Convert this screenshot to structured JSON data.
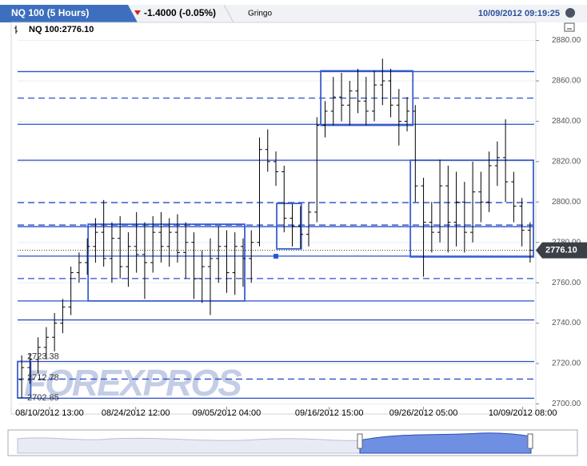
{
  "header": {
    "tab": "NQ 100 (5 Hours)",
    "change": "-1.4000 (-0.05%)",
    "user": "Gringo",
    "timestamp": "10/09/2012 09:19:25"
  },
  "chart_data": {
    "type": "ohlc",
    "title": "NQ 100:2776.10",
    "watermark": "FOREXPROS",
    "color": "#000000",
    "open": [
      2712,
      2718,
      2722,
      2728,
      2733,
      2740,
      2748,
      2765,
      2770,
      2778,
      2785,
      2772,
      2782,
      2768,
      2778,
      2774,
      2770,
      2785,
      2778,
      2785,
      2775,
      2780,
      2762,
      2768,
      2772,
      2778,
      2765,
      2778,
      2772,
      2780,
      2826,
      2820,
      2815,
      2792,
      2788,
      2784,
      2795,
      2838,
      2845,
      2852,
      2848,
      2855,
      2850,
      2845,
      2858,
      2860,
      2848,
      2840,
      2845,
      2808,
      2790,
      2785,
      2808,
      2790,
      2800,
      2785,
      2805,
      2800,
      2818,
      2822,
      2810,
      2798,
      2786
    ],
    "high": [
      2724,
      2725,
      2733,
      2738,
      2745,
      2752,
      2768,
      2775,
      2782,
      2792,
      2801,
      2790,
      2793,
      2785,
      2795,
      2790,
      2793,
      2795,
      2792,
      2794,
      2790,
      2785,
      2776,
      2782,
      2788,
      2786,
      2785,
      2782,
      2786,
      2832,
      2836,
      2825,
      2818,
      2799,
      2798,
      2800,
      2842,
      2850,
      2862,
      2864,
      2860,
      2866,
      2862,
      2865,
      2871,
      2866,
      2856,
      2852,
      2848,
      2812,
      2800,
      2821,
      2818,
      2815,
      2810,
      2820,
      2815,
      2825,
      2830,
      2841,
      2815,
      2802,
      2790
    ],
    "low": [
      2703,
      2710,
      2715,
      2722,
      2726,
      2735,
      2744,
      2760,
      2764,
      2770,
      2768,
      2760,
      2762,
      2758,
      2765,
      2752,
      2765,
      2770,
      2768,
      2770,
      2762,
      2752,
      2750,
      2744,
      2760,
      2755,
      2754,
      2758,
      2760,
      2778,
      2815,
      2808,
      2785,
      2778,
      2777,
      2778,
      2790,
      2832,
      2838,
      2840,
      2838,
      2844,
      2838,
      2840,
      2848,
      2842,
      2828,
      2835,
      2800,
      2763,
      2775,
      2780,
      2775,
      2778,
      2775,
      2780,
      2790,
      2795,
      2808,
      2800,
      2790,
      2778,
      2770
    ],
    "close": [
      2718,
      2722,
      2728,
      2733,
      2740,
      2748,
      2765,
      2770,
      2778,
      2785,
      2772,
      2782,
      2768,
      2778,
      2774,
      2770,
      2785,
      2778,
      2785,
      2775,
      2780,
      2762,
      2768,
      2772,
      2778,
      2765,
      2778,
      2772,
      2780,
      2826,
      2820,
      2815,
      2792,
      2788,
      2784,
      2795,
      2838,
      2845,
      2852,
      2848,
      2855,
      2850,
      2845,
      2858,
      2860,
      2848,
      2840,
      2845,
      2808,
      2790,
      2785,
      2808,
      2790,
      2800,
      2785,
      2805,
      2800,
      2818,
      2822,
      2810,
      2798,
      2786,
      2776.1
    ],
    "xlim": [
      0,
      63
    ],
    "xticks": [
      {
        "value": 3.9,
        "label": "08/10/2012 13:00"
      },
      {
        "value": 14.4,
        "label": "08/24/2012 12:00"
      },
      {
        "value": 25.5,
        "label": "09/05/2012 04:00"
      },
      {
        "value": 38.0,
        "label": "09/16/2012 15:00"
      },
      {
        "value": 49.5,
        "label": "09/26/2012 05:00"
      },
      {
        "value": 61.6,
        "label": "10/09/2012 08:00"
      }
    ],
    "ylim": [
      2697,
      2885
    ],
    "yticks": [
      {
        "value": 2700,
        "label": "2700.00"
      },
      {
        "value": 2720,
        "label": "2720.00"
      },
      {
        "value": 2740,
        "label": "2740.00"
      },
      {
        "value": 2760,
        "label": "2760.00"
      },
      {
        "value": 2780,
        "label": "2780.00"
      },
      {
        "value": 2800,
        "label": "2800.00"
      },
      {
        "value": 2820,
        "label": "2820.00"
      },
      {
        "value": 2840,
        "label": "2840.00"
      },
      {
        "value": 2860,
        "label": "2860.00"
      },
      {
        "value": 2880,
        "label": "2880.00"
      }
    ],
    "grid": true,
    "level_color": "#2b4fc9",
    "levels": [
      {
        "value": 2864.6,
        "style": "solid"
      },
      {
        "value": 2851.5,
        "style": "dashed"
      },
      {
        "value": 2838.5,
        "style": "solid"
      },
      {
        "value": 2820.7,
        "style": "solid"
      },
      {
        "value": 2799.7,
        "style": "dashed"
      },
      {
        "value": 2788.6,
        "style": "dashed"
      },
      {
        "value": 2787.8,
        "style": "solid"
      },
      {
        "value": 2773.2,
        "style": "solid"
      },
      {
        "value": 2762.1,
        "style": "dashed"
      },
      {
        "value": 2751.0,
        "style": "solid"
      },
      {
        "value": 2741.6,
        "style": "solid"
      },
      {
        "value": 2721.0,
        "style": "solid"
      },
      {
        "value": 2712.3,
        "style": "dashed"
      },
      {
        "value": 2702.8,
        "style": "solid"
      }
    ],
    "boxes": [
      {
        "x": [
          8.6,
          27.7
        ],
        "y": [
          2751,
          2789
        ]
      },
      {
        "x": [
          31.6,
          34.6
        ],
        "y": [
          2776.8,
          2799.3
        ]
      },
      {
        "x": [
          36.97,
          48.2
        ],
        "y": [
          2838,
          2865
        ]
      },
      {
        "x": [
          47.9,
          62.9
        ],
        "y": [
          2772.8,
          2820.7
        ]
      },
      {
        "x": [
          0,
          1.6
        ],
        "y": [
          2703,
          2721
        ]
      }
    ],
    "annotations": [
      {
        "value": 2723.38,
        "label": "2723.38"
      },
      {
        "value": 2712.78,
        "label": "2712.78"
      },
      {
        "value": 2702.85,
        "label": "2702.85"
      }
    ],
    "last": {
      "value": 2776.1,
      "label": "2776.10"
    }
  }
}
